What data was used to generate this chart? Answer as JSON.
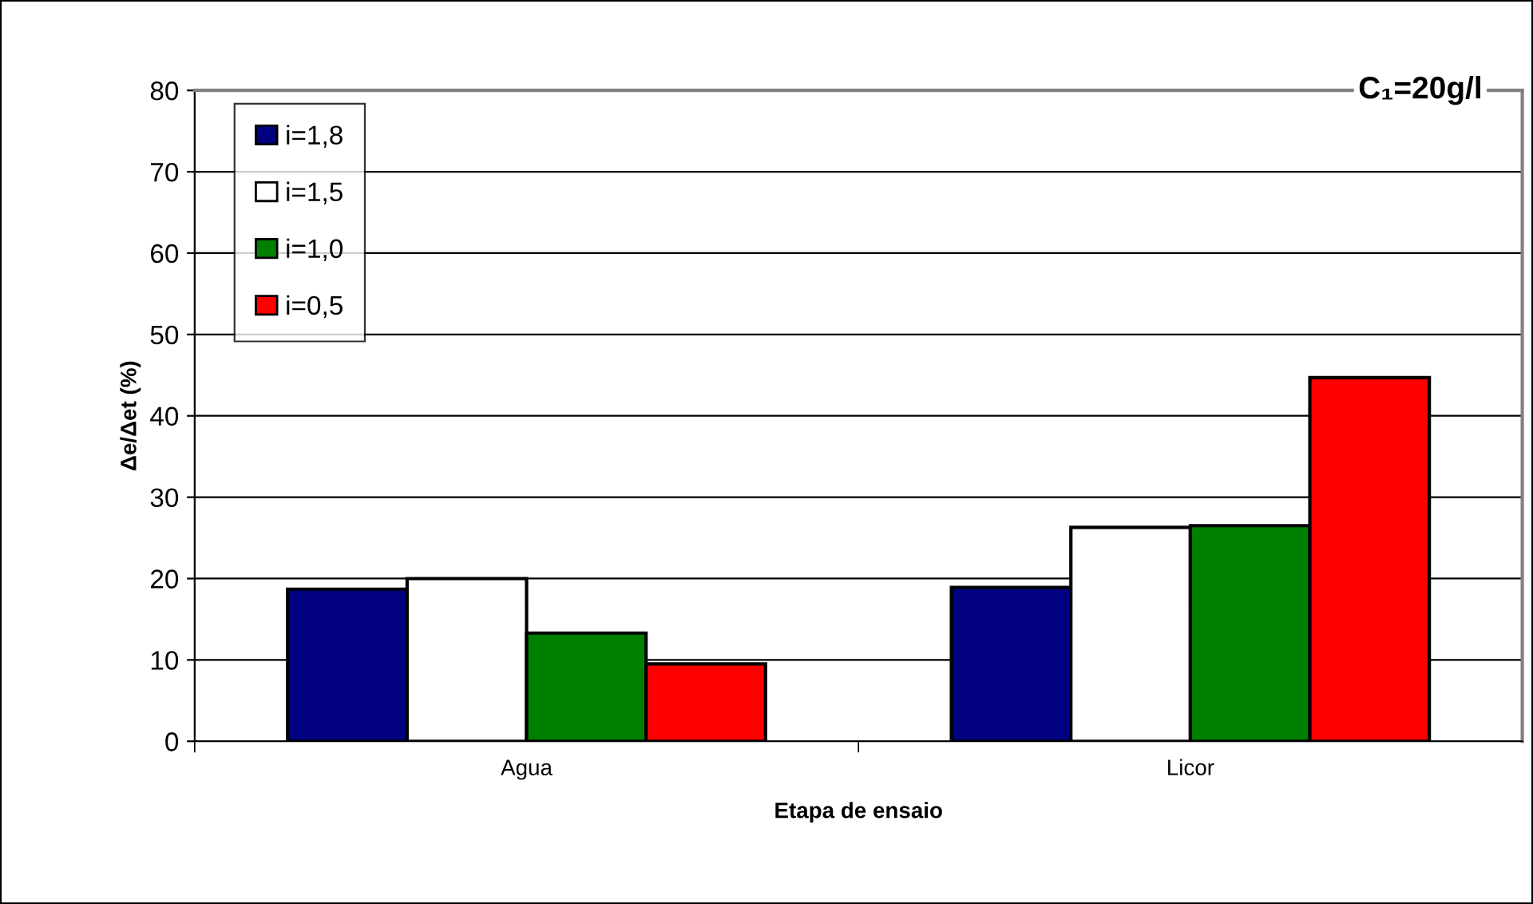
{
  "chart_data": {
    "type": "bar",
    "title": "C₁=20g/l",
    "xlabel": "Etapa de ensaio",
    "ylabel": "Δe/Δet (%)",
    "categories": [
      "Agua",
      "Licor"
    ],
    "series": [
      {
        "name": "i=1,8",
        "color": "#000080",
        "values": [
          18.7,
          18.9
        ]
      },
      {
        "name": "i=1,5",
        "color": "#ffffff",
        "values": [
          20.0,
          26.3
        ]
      },
      {
        "name": "i=1,0",
        "color": "#008000",
        "values": [
          13.3,
          26.5
        ]
      },
      {
        "name": "i=0,5",
        "color": "#ff0000",
        "values": [
          9.5,
          44.7
        ]
      }
    ],
    "ylim": [
      0,
      80
    ],
    "yticks": [
      0,
      10,
      20,
      30,
      40,
      50,
      60,
      70,
      80
    ],
    "grid": "y",
    "legend": "top left"
  }
}
